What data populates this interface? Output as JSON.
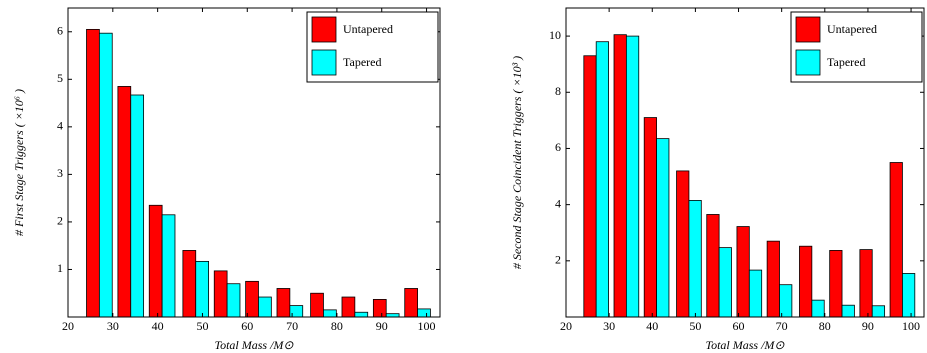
{
  "chart_data": [
    {
      "type": "bar",
      "x_label": "Total Mass /M⊙",
      "y_label": "# First Stage Triggers ( ×10⁶ )",
      "x": [
        27,
        34,
        41,
        48.5,
        55.5,
        62.5,
        69.5,
        77,
        84,
        91,
        98
      ],
      "series": [
        {
          "name": "Untapered",
          "color": "#ff0000",
          "values": [
            6.05,
            4.85,
            2.35,
            1.4,
            0.97,
            0.75,
            0.6,
            0.5,
            0.42,
            0.37,
            0.6
          ]
        },
        {
          "name": "Tapered",
          "color": "#00ffff",
          "values": [
            5.97,
            4.67,
            2.15,
            1.17,
            0.7,
            0.42,
            0.24,
            0.15,
            0.1,
            0.07,
            0.17
          ]
        }
      ],
      "xlim": [
        20,
        103
      ],
      "xticks": [
        20,
        30,
        40,
        50,
        60,
        70,
        80,
        90,
        100
      ],
      "ylim": [
        0,
        6.5
      ],
      "yticks": [
        1,
        2,
        3,
        4,
        5,
        6
      ],
      "legend": "upper right"
    },
    {
      "type": "bar",
      "x_label": "Total Mass /M⊙",
      "y_label": "# Second Stage Coincident Triggers ( ×10³ )",
      "x": [
        27,
        34,
        41,
        48.5,
        55.5,
        62.5,
        69.5,
        77,
        84,
        91,
        98
      ],
      "series": [
        {
          "name": "Untapered",
          "color": "#ff0000",
          "values": [
            9.3,
            10.05,
            7.1,
            5.2,
            3.65,
            3.22,
            2.7,
            2.52,
            2.37,
            2.4,
            5.5
          ]
        },
        {
          "name": "Tapered",
          "color": "#00ffff",
          "values": [
            9.8,
            10.0,
            6.35,
            4.15,
            2.47,
            1.67,
            1.15,
            0.6,
            0.42,
            0.4,
            1.55
          ]
        }
      ],
      "xlim": [
        20,
        103
      ],
      "xticks": [
        20,
        30,
        40,
        50,
        60,
        70,
        80,
        90,
        100
      ],
      "ylim": [
        0,
        11
      ],
      "yticks": [
        2,
        4,
        6,
        8,
        10
      ],
      "legend": "upper right"
    }
  ]
}
